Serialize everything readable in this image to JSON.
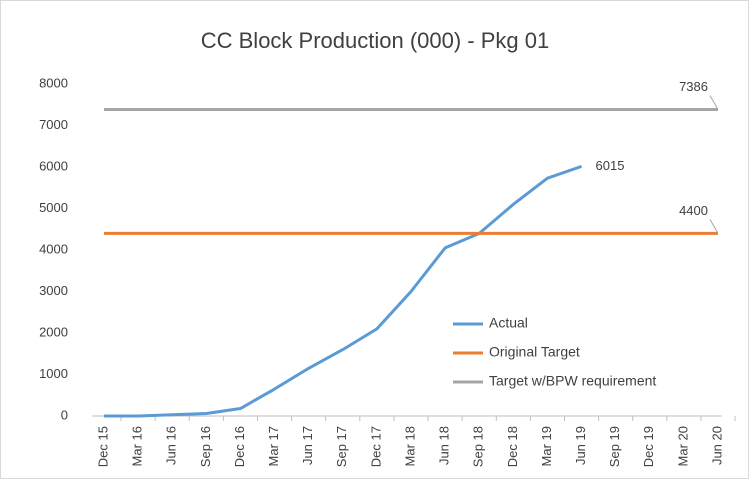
{
  "chart_data": {
    "type": "line",
    "title": "CC Block Production (000) - Pkg 01",
    "categories": [
      "Dec 15",
      "Mar 16",
      "Jun 16",
      "Sep 16",
      "Dec 16",
      "Mar 17",
      "Jun 17",
      "Sep 17",
      "Dec 17",
      "Mar 18",
      "Jun 18",
      "Sep 18",
      "Dec 18",
      "Mar 19",
      "Jun 19",
      "Sep 19",
      "Dec 19",
      "Mar 20",
      "Jun 20"
    ],
    "series": [
      {
        "name": "Actual",
        "color": "#5b9bd5",
        "values": [
          0,
          0,
          30,
          60,
          180,
          650,
          1150,
          1600,
          2100,
          3000,
          4050,
          4400,
          5100,
          5730,
          6015,
          null,
          null,
          null,
          null
        ]
      },
      {
        "name": "Original Target",
        "color": "#ed7d31",
        "values": [
          4400,
          4400,
          4400,
          4400,
          4400,
          4400,
          4400,
          4400,
          4400,
          4400,
          4400,
          4400,
          4400,
          4400,
          4400,
          4400,
          4400,
          4400,
          4400
        ]
      },
      {
        "name": "Target w/BPW requirement",
        "color": "#a5a5a5",
        "values": [
          7386,
          7386,
          7386,
          7386,
          7386,
          7386,
          7386,
          7386,
          7386,
          7386,
          7386,
          7386,
          7386,
          7386,
          7386,
          7386,
          7386,
          7386,
          7386
        ]
      }
    ],
    "ylim": [
      0,
      8000
    ],
    "yticks": [
      0,
      1000,
      2000,
      3000,
      4000,
      5000,
      6000,
      7000,
      8000
    ],
    "grid": false,
    "legend": "lower right"
  }
}
